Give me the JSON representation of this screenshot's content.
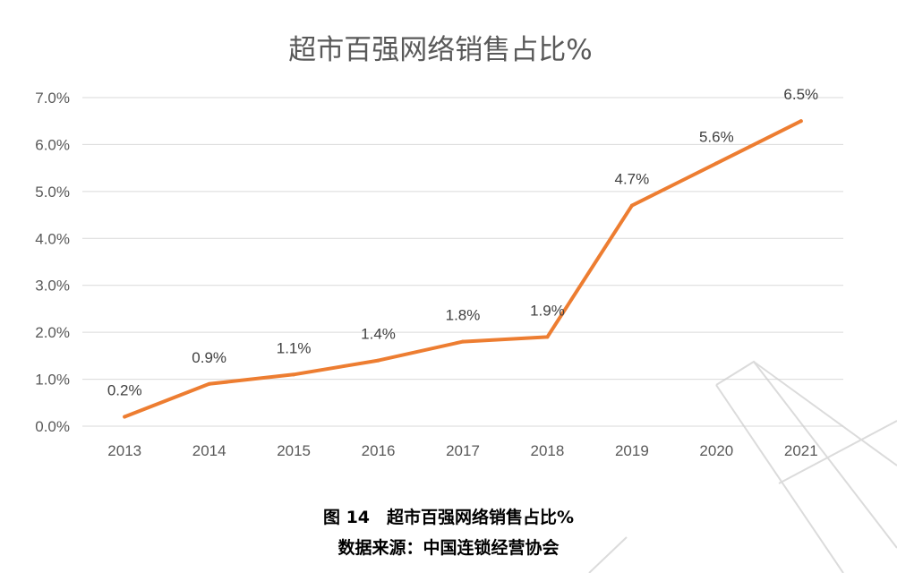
{
  "chart_data": {
    "type": "line",
    "title": "超市百强网络销售占比%",
    "xlabel": "",
    "ylabel": "",
    "categories": [
      "2013",
      "2014",
      "2015",
      "2016",
      "2017",
      "2018",
      "2019",
      "2020",
      "2021"
    ],
    "series": [
      {
        "values": [
          0.2,
          0.9,
          1.1,
          1.4,
          1.8,
          1.9,
          4.7,
          5.6,
          6.5
        ],
        "labels": [
          "0.2%",
          "0.9%",
          "1.1%",
          "1.4%",
          "1.8%",
          "1.9%",
          "4.7%",
          "5.6%",
          "6.5%"
        ]
      }
    ],
    "ylim": [
      0,
      7
    ],
    "yticks": [
      "0.0%",
      "1.0%",
      "2.0%",
      "3.0%",
      "4.0%",
      "5.0%",
      "6.0%",
      "7.0%"
    ],
    "grid": true,
    "legend": "none",
    "line_color": "#ed7d31",
    "grid_color": "#d9d9d9"
  },
  "caption": {
    "figure_label": "图 14　超市百强网络销售占比%",
    "source": "数据来源：中国连锁经营协会"
  }
}
